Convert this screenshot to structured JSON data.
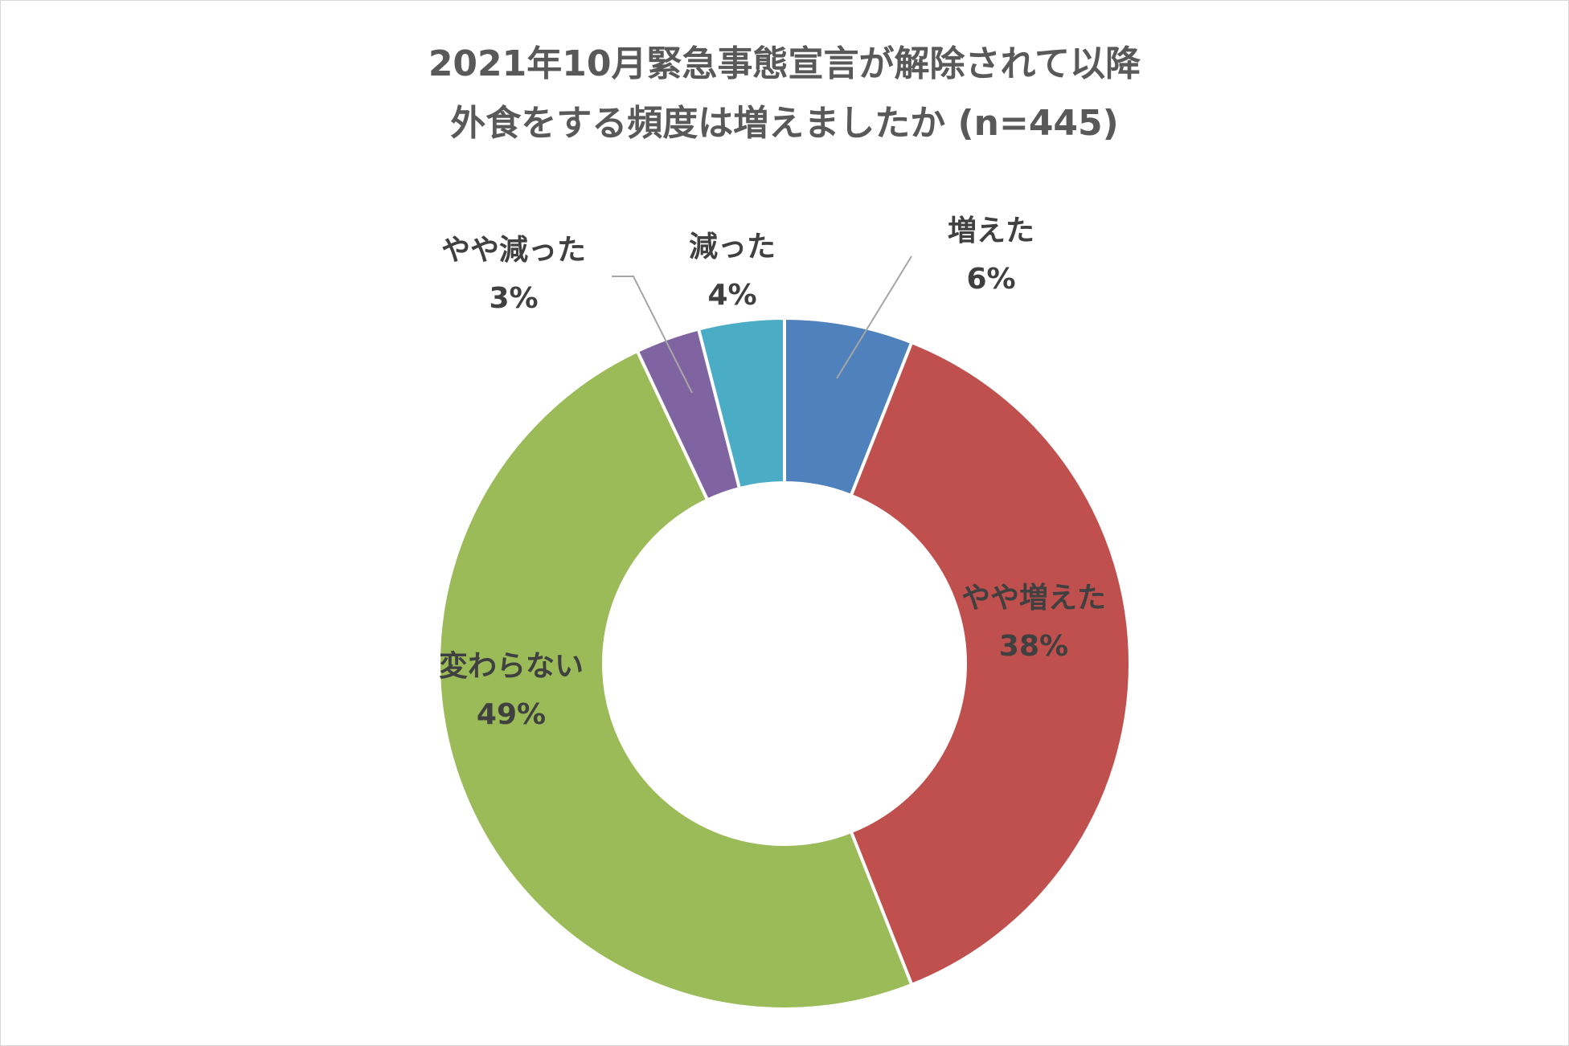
{
  "chart_data": {
    "type": "donut",
    "title": "2021年10月緊急事態宣言が解除されて以降",
    "subtitle": "外食をする頻度は増えましたか (n=445)",
    "slices": [
      {
        "name": "増えた",
        "value": 6,
        "label": "6%",
        "color": "#4f81bd"
      },
      {
        "name": "やや増えた",
        "value": 38,
        "label": "38%",
        "color": "#c0504d"
      },
      {
        "name": "変わらない",
        "value": 49,
        "label": "49%",
        "color": "#9bbb59"
      },
      {
        "name": "やや減った",
        "value": 3,
        "label": "3%",
        "color": "#8064a2"
      },
      {
        "name": "減った",
        "value": 4,
        "label": "4%",
        "color": "#4bacc6"
      }
    ],
    "legend": "none",
    "start_angle": "12 o'clock, clockwise"
  }
}
